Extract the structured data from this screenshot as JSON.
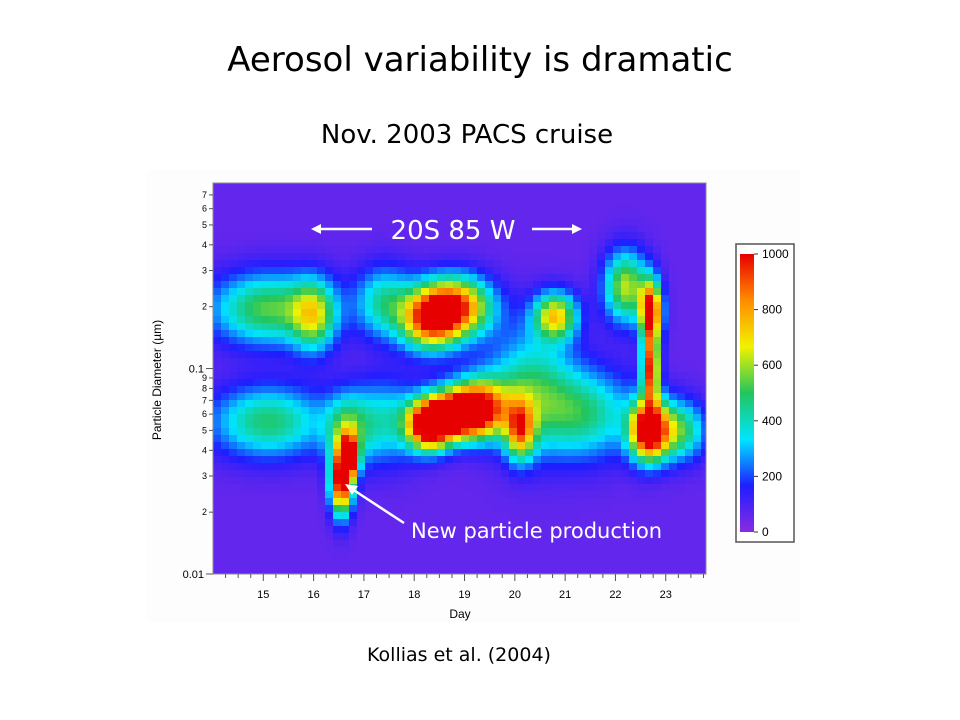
{
  "slide": {
    "title": "Aerosol variability is dramatic",
    "subtitle": "Nov. 2003 PACS cruise",
    "citation": "Kollias et al. (2004)"
  },
  "chart_data": {
    "type": "heatmap",
    "xlabel": "Day",
    "ylabel": "Particle Diameter (µm)",
    "x_ticks": [
      15,
      16,
      17,
      18,
      19,
      20,
      21,
      22,
      23
    ],
    "xlim": [
      14,
      23.8
    ],
    "y_scale": "log",
    "ylim": [
      0.01,
      0.8
    ],
    "y_major_ticks": [
      {
        "value": 0.01,
        "label": "0.01"
      },
      {
        "value": 0.1,
        "label": "0.1"
      }
    ],
    "y_minor_ticks": [
      {
        "value": 0.02,
        "label": "2"
      },
      {
        "value": 0.03,
        "label": "3"
      },
      {
        "value": 0.04,
        "label": "4"
      },
      {
        "value": 0.05,
        "label": "5"
      },
      {
        "value": 0.06,
        "label": "6"
      },
      {
        "value": 0.07,
        "label": "7"
      },
      {
        "value": 0.08,
        "label": "8"
      },
      {
        "value": 0.09,
        "label": "9"
      },
      {
        "value": 0.2,
        "label": "2"
      },
      {
        "value": 0.3,
        "label": "3"
      },
      {
        "value": 0.4,
        "label": "4"
      },
      {
        "value": 0.5,
        "label": "5"
      },
      {
        "value": 0.6,
        "label": "6"
      },
      {
        "value": 0.7,
        "label": "7"
      }
    ],
    "colorbar": {
      "min": 0,
      "max": 1000,
      "ticks": [
        0,
        200,
        400,
        600,
        800,
        1000
      ],
      "colors": [
        "#8a2be2",
        "#1e1eff",
        "#00e5ff",
        "#22c55e",
        "#f2f200",
        "#ff8c00",
        "#e60000"
      ]
    },
    "background_value": 60,
    "features": [
      {
        "x": 15.1,
        "y": 0.195,
        "value": 480,
        "wx": 0.8,
        "wy": 0.12
      },
      {
        "x": 15.1,
        "y": 0.055,
        "value": 420,
        "wx": 0.8,
        "wy": 0.12
      },
      {
        "x": 16.0,
        "y": 0.18,
        "value": 440,
        "wx": 0.3,
        "wy": 0.12
      },
      {
        "x": 16.55,
        "y": 0.028,
        "value": 1000,
        "wx": 0.15,
        "wy": 0.11
      },
      {
        "x": 16.7,
        "y": 0.037,
        "value": 900,
        "wx": 0.12,
        "wy": 0.07
      },
      {
        "x": 16.65,
        "y": 0.05,
        "value": 350,
        "wx": 0.3,
        "wy": 0.12
      },
      {
        "x": 17.4,
        "y": 0.21,
        "value": 360,
        "wx": 0.4,
        "wy": 0.12
      },
      {
        "x": 17.4,
        "y": 0.055,
        "value": 320,
        "wx": 0.5,
        "wy": 0.14
      },
      {
        "x": 18.8,
        "y": 0.2,
        "value": 860,
        "wx": 0.5,
        "wy": 0.1
      },
      {
        "x": 18.3,
        "y": 0.17,
        "value": 700,
        "wx": 0.4,
        "wy": 0.1
      },
      {
        "x": 18.8,
        "y": 0.06,
        "value": 1000,
        "wx": 0.45,
        "wy": 0.08
      },
      {
        "x": 18.3,
        "y": 0.052,
        "value": 950,
        "wx": 0.3,
        "wy": 0.08
      },
      {
        "x": 19.3,
        "y": 0.065,
        "value": 700,
        "wx": 0.4,
        "wy": 0.1
      },
      {
        "x": 20.1,
        "y": 0.05,
        "value": 620,
        "wx": 0.2,
        "wy": 0.1
      },
      {
        "x": 20.3,
        "y": 0.08,
        "value": 380,
        "wx": 0.6,
        "wy": 0.2
      },
      {
        "x": 20.8,
        "y": 0.18,
        "value": 640,
        "wx": 0.3,
        "wy": 0.08
      },
      {
        "x": 21.4,
        "y": 0.06,
        "value": 380,
        "wx": 0.7,
        "wy": 0.15
      },
      {
        "x": 22.2,
        "y": 0.25,
        "value": 560,
        "wx": 0.3,
        "wy": 0.12
      },
      {
        "x": 22.65,
        "y": 0.05,
        "value": 1000,
        "wx": 0.25,
        "wy": 0.1
      },
      {
        "x": 22.7,
        "y": 0.19,
        "value": 950,
        "wx": 0.15,
        "wy": 0.1
      },
      {
        "x": 22.7,
        "y": 0.1,
        "value": 880,
        "wx": 0.12,
        "wy": 0.12
      },
      {
        "x": 23.2,
        "y": 0.05,
        "value": 480,
        "wx": 0.4,
        "wy": 0.1
      }
    ],
    "annotations": [
      {
        "text": "20S 85 W",
        "note": "arrows point left and right"
      },
      {
        "text": "New particle production",
        "note": "arrow points to red feature near day 16.6"
      }
    ]
  }
}
